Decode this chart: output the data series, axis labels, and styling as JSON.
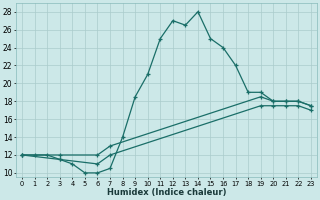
{
  "title": "",
  "xlabel": "Humidex (Indice chaleur)",
  "bg_color": "#cce8e8",
  "line_color": "#1a6e68",
  "grid_color": "#aacccc",
  "xlim": [
    -0.5,
    23.5
  ],
  "ylim": [
    9.5,
    29
  ],
  "xticks": [
    0,
    1,
    2,
    3,
    4,
    5,
    6,
    7,
    8,
    9,
    10,
    11,
    12,
    13,
    14,
    15,
    16,
    17,
    18,
    19,
    20,
    21,
    22,
    23
  ],
  "yticks": [
    10,
    12,
    14,
    16,
    18,
    20,
    22,
    24,
    26,
    28
  ],
  "line1_x": [
    0,
    1,
    2,
    3,
    4,
    5,
    6,
    7,
    8,
    9,
    10,
    11,
    12,
    13,
    14,
    15,
    16,
    17,
    18,
    19,
    20,
    21,
    22,
    23
  ],
  "line1_y": [
    12.0,
    12.0,
    12.0,
    11.5,
    11.0,
    10.0,
    10.0,
    10.5,
    14.0,
    18.5,
    21.0,
    25.0,
    27.0,
    26.5,
    28.0,
    25.0,
    24.0,
    22.0,
    19.0,
    19.0,
    18.0,
    18.0,
    18.0,
    17.5
  ],
  "line2_x": [
    0,
    3,
    6,
    7,
    19,
    20,
    21,
    22,
    23
  ],
  "line2_y": [
    12.0,
    12.0,
    12.0,
    13.0,
    18.5,
    18.0,
    18.0,
    18.0,
    17.5
  ],
  "line3_x": [
    0,
    3,
    6,
    7,
    19,
    20,
    21,
    22,
    23
  ],
  "line3_y": [
    12.0,
    11.5,
    11.0,
    12.0,
    17.5,
    17.5,
    17.5,
    17.5,
    17.0
  ]
}
